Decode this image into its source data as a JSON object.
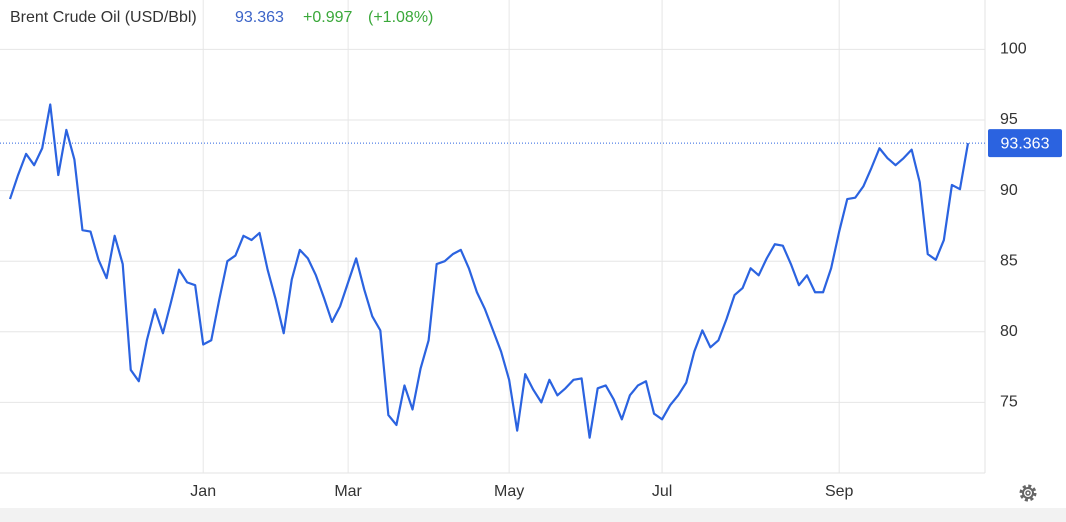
{
  "chart_data": {
    "type": "line",
    "title": "Brent Crude Oil (USD/Bbl)",
    "change": "+0.997",
    "change_percent": "(+1.08%)",
    "categories": [
      null,
      null,
      null,
      null,
      null,
      null,
      null,
      null,
      null,
      null,
      null,
      null,
      null,
      null,
      null,
      null,
      null,
      null,
      null,
      null,
      null,
      null,
      null,
      null,
      "Jan",
      null,
      null,
      null,
      null,
      null,
      null,
      null,
      null,
      null,
      null,
      null,
      null,
      null,
      null,
      null,
      null,
      null,
      "Mar",
      null,
      null,
      null,
      null,
      null,
      null,
      null,
      null,
      null,
      null,
      null,
      null,
      null,
      null,
      null,
      null,
      null,
      null,
      null,
      "May",
      null,
      null,
      null,
      null,
      null,
      null,
      null,
      null,
      null,
      null,
      null,
      null,
      null,
      null,
      null,
      null,
      null,
      null,
      "Jul",
      null,
      null,
      null,
      null,
      null,
      null,
      null,
      null,
      null,
      null,
      null,
      null,
      null,
      null,
      null,
      null,
      null,
      null,
      null,
      null,
      null,
      "Sep",
      null,
      null,
      null,
      null,
      null,
      null,
      null,
      null,
      null,
      null,
      null,
      null,
      null,
      null,
      null,
      null
    ],
    "series": [
      {
        "name": "Brent Crude Oil",
        "color": "#2b63e0",
        "values": [
          89.4,
          91.1,
          92.6,
          91.8,
          93.0,
          96.1,
          91.1,
          94.3,
          92.2,
          87.2,
          87.1,
          85.1,
          83.8,
          86.8,
          84.8,
          77.3,
          76.5,
          79.4,
          81.6,
          79.9,
          82.1,
          84.4,
          83.5,
          83.3,
          79.1,
          79.4,
          82.3,
          85.0,
          85.4,
          86.8,
          86.5,
          87.0,
          84.4,
          82.3,
          79.9,
          83.7,
          85.8,
          85.2,
          84.0,
          82.4,
          80.7,
          81.8,
          83.5,
          85.2,
          83.0,
          81.1,
          80.1,
          74.1,
          73.4,
          76.2,
          74.5,
          77.4,
          79.4,
          84.8,
          85.0,
          85.5,
          85.8,
          84.5,
          82.8,
          81.6,
          80.1,
          78.6,
          76.6,
          73.0,
          77.0,
          75.9,
          75.0,
          76.6,
          75.5,
          76.0,
          76.6,
          76.7,
          72.5,
          76.0,
          76.2,
          75.2,
          73.8,
          75.5,
          76.2,
          76.5,
          74.2,
          73.8,
          74.8,
          75.5,
          76.4,
          78.6,
          80.1,
          78.9,
          79.4,
          80.9,
          82.6,
          83.1,
          84.5,
          84.0,
          85.2,
          86.2,
          86.1,
          84.8,
          83.3,
          84.0,
          82.8,
          82.8,
          84.5,
          87.1,
          89.4,
          89.5,
          90.3,
          91.6,
          93.0,
          92.3,
          91.8,
          92.3,
          92.9,
          90.6,
          85.5,
          85.1,
          86.5,
          90.4,
          90.1,
          93.363
        ]
      }
    ],
    "ylim": [
      70,
      103.5
    ],
    "yticks": [
      75,
      80,
      85,
      90,
      95,
      100
    ],
    "grid": true
  }
}
